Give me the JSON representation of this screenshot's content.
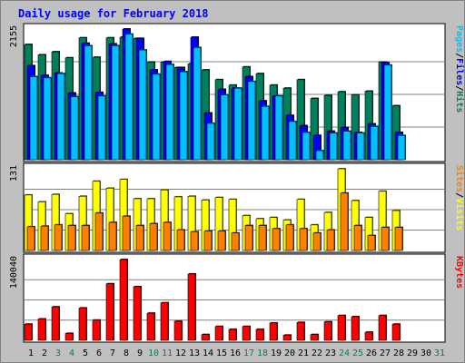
{
  "chart_data": {
    "type": "bar",
    "title": "Daily usage for February 2018",
    "colors": {
      "background": "#C0C0C0",
      "panel": "#FFFFFF",
      "title": "#0000FF",
      "hits": "#00805C",
      "files": "#0000FF",
      "pages": "#00C0FF",
      "visits": "#FFFF00",
      "sites": "#FF8000",
      "kbytes": "#FF0000",
      "weekend_day": "#00805C",
      "weekday": "#000000"
    },
    "days": [
      "1",
      "2",
      "3",
      "4",
      "5",
      "6",
      "7",
      "8",
      "9",
      "10",
      "11",
      "12",
      "13",
      "14",
      "15",
      "16",
      "17",
      "18",
      "19",
      "20",
      "21",
      "22",
      "23",
      "24",
      "25",
      "26",
      "27",
      "28",
      "29",
      "30",
      "31"
    ],
    "weekend_days": [
      "3",
      "4",
      "10",
      "11",
      "17",
      "18",
      "24",
      "25",
      "31"
    ],
    "top": {
      "max_label": "2155",
      "max": 2155,
      "legend": [
        "Pages",
        "/",
        "Files",
        "/",
        "Hits"
      ],
      "series": [
        {
          "name": "Hits",
          "values": [
            1900,
            1730,
            1780,
            1680,
            2010,
            1690,
            2010,
            2020,
            2000,
            1610,
            1610,
            1520,
            1580,
            1480,
            1320,
            1230,
            1530,
            1420,
            1230,
            1180,
            1320,
            1010,
            1060,
            1120,
            1070,
            1130,
            1610,
            890,
            0,
            0,
            0
          ]
        },
        {
          "name": "Files",
          "values": [
            1550,
            1390,
            1430,
            1100,
            1920,
            1110,
            1910,
            2155,
            2000,
            1480,
            1620,
            1520,
            2020,
            770,
            1160,
            1180,
            1370,
            970,
            1050,
            730,
            560,
            400,
            470,
            530,
            450,
            590,
            1600,
            450,
            0,
            0,
            0
          ]
        },
        {
          "name": "Pages",
          "values": [
            1370,
            1350,
            1420,
            1040,
            1880,
            1050,
            1880,
            2070,
            1810,
            1410,
            1570,
            1450,
            1850,
            600,
            1070,
            1180,
            1290,
            880,
            1050,
            630,
            450,
            150,
            440,
            470,
            440,
            550,
            1560,
            400,
            0,
            0,
            0
          ]
        }
      ]
    },
    "middle": {
      "max_label": "131",
      "max": 131,
      "legend": [
        "Sites",
        "/",
        "Visits"
      ],
      "series": [
        {
          "name": "Visits",
          "values": [
            89,
            78,
            90,
            59,
            87,
            111,
            100,
            114,
            83,
            83,
            97,
            86,
            87,
            81,
            85,
            82,
            56,
            51,
            53,
            49,
            82,
            41,
            61,
            131,
            80,
            53,
            95,
            64,
            0,
            0,
            0
          ]
        },
        {
          "name": "Sites",
          "values": [
            38,
            39,
            41,
            40,
            40,
            60,
            45,
            55,
            40,
            43,
            45,
            33,
            30,
            31,
            31,
            28,
            40,
            40,
            35,
            41,
            35,
            28,
            33,
            92,
            40,
            24,
            37,
            37,
            0,
            0,
            0
          ]
        }
      ]
    },
    "bottom": {
      "max_label": "140040",
      "max": 140040,
      "legend": [
        "KBytes"
      ],
      "series": [
        {
          "name": "KBytes",
          "values": [
            28000,
            37000,
            58000,
            12000,
            56000,
            35000,
            98000,
            140040,
            93000,
            47000,
            65000,
            33000,
            115000,
            10000,
            24000,
            19000,
            24000,
            19000,
            30000,
            9000,
            31000,
            10000,
            32000,
            43000,
            41000,
            14000,
            43000,
            28000,
            0,
            0,
            0
          ]
        }
      ]
    }
  }
}
